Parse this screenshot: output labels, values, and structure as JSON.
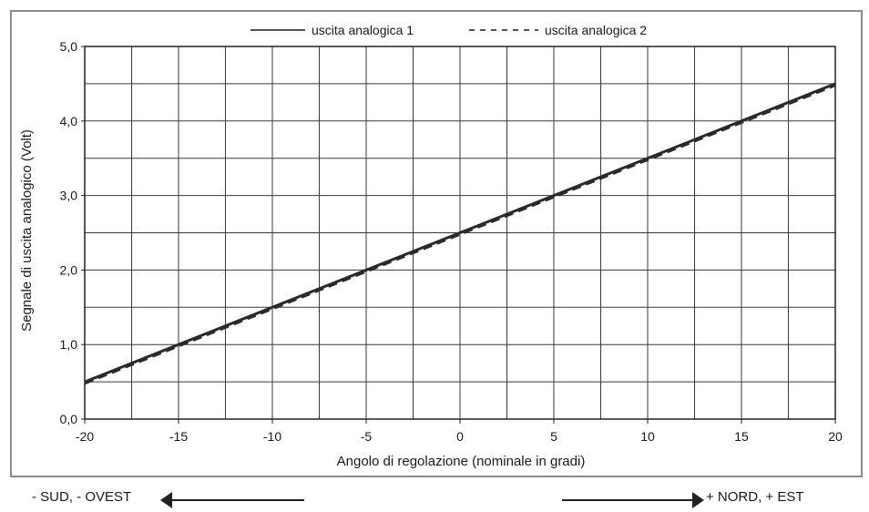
{
  "chart_data": {
    "type": "line",
    "xlabel": "Angolo di regolazione (nominale in gradi)",
    "ylabel": "Segnale di uscita analogico (Volt)",
    "xlim": [
      -20,
      20
    ],
    "ylim": [
      0,
      5
    ],
    "x_minor_step": 2.5,
    "y_minor_step": 0.5,
    "x_ticks": [
      "-20",
      "-15",
      "-10",
      "-5",
      "0",
      "5",
      "10",
      "15",
      "20"
    ],
    "y_ticks": [
      "0,0",
      "1,0",
      "2,0",
      "3,0",
      "4,0",
      "5,0"
    ],
    "grid": true,
    "legend_position": "top-center",
    "series": [
      {
        "name": "uscita analogica 1",
        "style": "solid",
        "x": [
          -20,
          20
        ],
        "y": [
          0.5,
          4.5
        ]
      },
      {
        "name": "uscita analogica 2",
        "style": "dashed",
        "x": [
          -20,
          20
        ],
        "y": [
          0.48,
          4.48
        ]
      }
    ]
  },
  "direction": {
    "left_label": "- SUD, - OVEST",
    "right_label": "+ NORD, +  EST"
  }
}
